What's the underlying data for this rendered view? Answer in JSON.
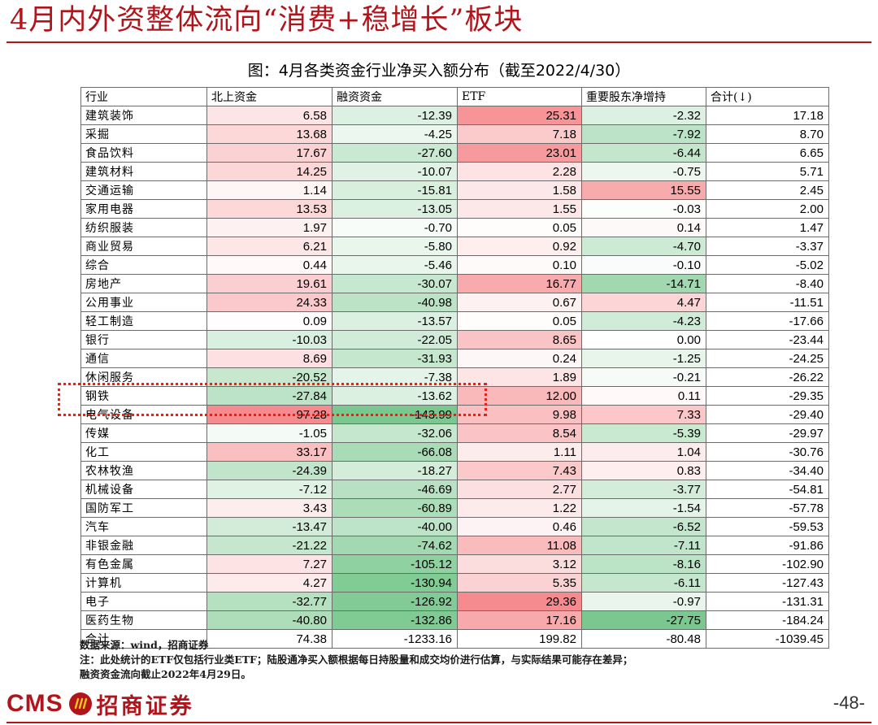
{
  "headline": "4月内外资整体流向“消费+稳增长”板块",
  "figure_title": "图：4月各类资金行业净买入额分布（截至2022/4/30）",
  "table": {
    "headers": [
      "行业",
      "北上资金",
      "融资资金",
      "ETF",
      "重要股东净增持",
      "合计(↓)"
    ],
    "rows": [
      {
        "industry": "建筑装饰",
        "northbound": "6.58",
        "margin": "-12.39",
        "etf": "25.31",
        "shareholder": "-2.32",
        "total": "17.18"
      },
      {
        "industry": "采掘",
        "northbound": "13.68",
        "margin": "-4.25",
        "etf": "7.18",
        "shareholder": "-7.92",
        "total": "8.70"
      },
      {
        "industry": "食品饮料",
        "northbound": "17.67",
        "margin": "-27.60",
        "etf": "23.01",
        "shareholder": "-6.44",
        "total": "6.65"
      },
      {
        "industry": "建筑材料",
        "northbound": "14.25",
        "margin": "-10.07",
        "etf": "2.28",
        "shareholder": "-0.75",
        "total": "5.71"
      },
      {
        "industry": "交通运输",
        "northbound": "1.14",
        "margin": "-15.81",
        "etf": "1.58",
        "shareholder": "15.55",
        "total": "2.45"
      },
      {
        "industry": "家用电器",
        "northbound": "13.53",
        "margin": "-13.05",
        "etf": "1.55",
        "shareholder": "-0.03",
        "total": "2.00"
      },
      {
        "industry": "纺织服装",
        "northbound": "1.97",
        "margin": "-0.70",
        "etf": "0.05",
        "shareholder": "0.14",
        "total": "1.47"
      },
      {
        "industry": "商业贸易",
        "northbound": "6.21",
        "margin": "-5.80",
        "etf": "0.92",
        "shareholder": "-4.70",
        "total": "-3.37"
      },
      {
        "industry": "综合",
        "northbound": "0.44",
        "margin": "-5.46",
        "etf": "0.10",
        "shareholder": "-0.10",
        "total": "-5.02"
      },
      {
        "industry": "房地产",
        "northbound": "19.61",
        "margin": "-30.07",
        "etf": "16.77",
        "shareholder": "-14.71",
        "total": "-8.40"
      },
      {
        "industry": "公用事业",
        "northbound": "24.33",
        "margin": "-40.98",
        "etf": "0.67",
        "shareholder": "4.47",
        "total": "-11.51"
      },
      {
        "industry": "轻工制造",
        "northbound": "0.09",
        "margin": "-13.57",
        "etf": "0.05",
        "shareholder": "-4.23",
        "total": "-17.66"
      },
      {
        "industry": "银行",
        "northbound": "-10.03",
        "margin": "-22.05",
        "etf": "8.65",
        "shareholder": "0.00",
        "total": "-23.44"
      },
      {
        "industry": "通信",
        "northbound": "8.69",
        "margin": "-31.93",
        "etf": "0.24",
        "shareholder": "-1.25",
        "total": "-24.25"
      },
      {
        "industry": "休闲服务",
        "northbound": "-20.52",
        "margin": "-7.38",
        "etf": "1.89",
        "shareholder": "-0.21",
        "total": "-26.22"
      },
      {
        "industry": "钢铁",
        "northbound": "-27.84",
        "margin": "-13.62",
        "etf": "12.00",
        "shareholder": "0.11",
        "total": "-29.35"
      },
      {
        "industry": "电气设备",
        "northbound": "97.28",
        "margin": "-143.99",
        "etf": "9.98",
        "shareholder": "7.33",
        "total": "-29.40"
      },
      {
        "industry": "传媒",
        "northbound": "-1.05",
        "margin": "-32.06",
        "etf": "8.54",
        "shareholder": "-5.39",
        "total": "-29.97"
      },
      {
        "industry": "化工",
        "northbound": "33.17",
        "margin": "-66.08",
        "etf": "1.11",
        "shareholder": "1.04",
        "total": "-30.76"
      },
      {
        "industry": "农林牧渔",
        "northbound": "-24.39",
        "margin": "-18.27",
        "etf": "7.43",
        "shareholder": "0.83",
        "total": "-34.40"
      },
      {
        "industry": "机械设备",
        "northbound": "-7.12",
        "margin": "-46.69",
        "etf": "2.77",
        "shareholder": "-3.77",
        "total": "-54.81"
      },
      {
        "industry": "国防军工",
        "northbound": "3.43",
        "margin": "-60.89",
        "etf": "1.22",
        "shareholder": "-1.54",
        "total": "-57.78"
      },
      {
        "industry": "汽车",
        "northbound": "-13.47",
        "margin": "-40.00",
        "etf": "0.46",
        "shareholder": "-6.52",
        "total": "-59.53"
      },
      {
        "industry": "非银金融",
        "northbound": "-21.22",
        "margin": "-74.62",
        "etf": "11.08",
        "shareholder": "-7.11",
        "total": "-91.86"
      },
      {
        "industry": "有色金属",
        "northbound": "7.27",
        "margin": "-105.12",
        "etf": "3.12",
        "shareholder": "-8.16",
        "total": "-102.90"
      },
      {
        "industry": "计算机",
        "northbound": "4.27",
        "margin": "-130.94",
        "etf": "5.35",
        "shareholder": "-6.11",
        "total": "-127.43"
      },
      {
        "industry": "电子",
        "northbound": "-32.77",
        "margin": "-126.92",
        "etf": "29.36",
        "shareholder": "-0.97",
        "total": "-131.31"
      },
      {
        "industry": "医药生物",
        "northbound": "-40.80",
        "margin": "-132.86",
        "etf": "17.16",
        "shareholder": "-27.75",
        "total": "-184.24"
      },
      {
        "industry": "合计",
        "northbound": "74.38",
        "margin": "-1233.16",
        "etf": "199.82",
        "shareholder": "-80.48",
        "total": "-1039.45"
      }
    ]
  },
  "colors": {
    "headline": "#b0151c",
    "positive": "#f4777b",
    "negative": "#63be7b",
    "highlight_border": "#e2231a"
  },
  "notes": [
    "数据来源：wind，招商证券",
    "注：此处统计的ETF仅包括行业类ETF；陆股通净买入额根据每日持股量和成交均价进行估算，与实际结果可能存在差异；",
    "融资资金流向截止2022年4月29日。"
  ],
  "footer": {
    "logo_latin": "CMS",
    "logo_chinese": "招商证券",
    "logo_icon": "cms-emblem-icon",
    "page_number": "-48-"
  }
}
